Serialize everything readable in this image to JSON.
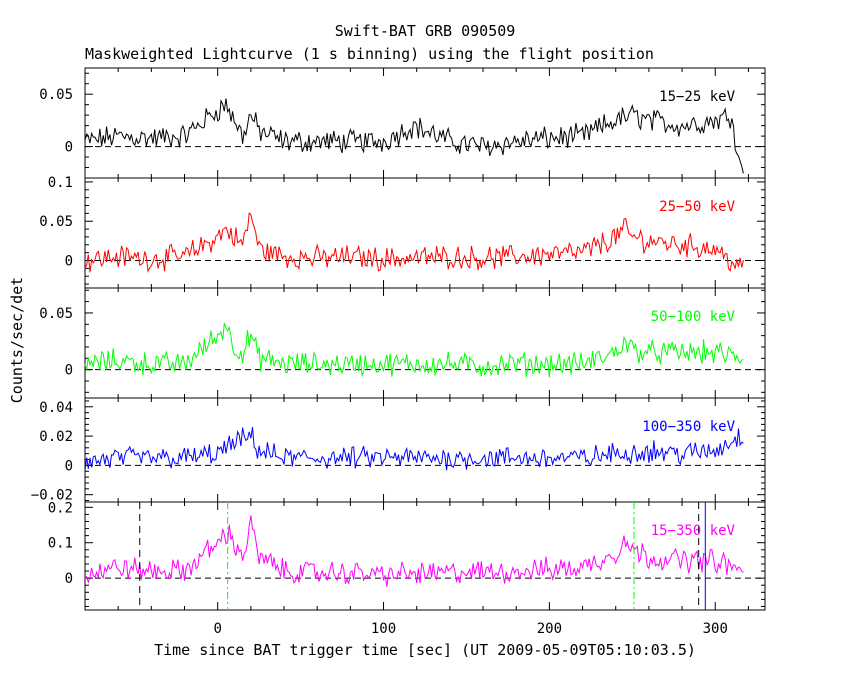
{
  "chart_data": {
    "type": "line",
    "title": "Swift-BAT GRB 090509",
    "subtitle": "Maskweighted Lightcurve (1 s binning) using the flight position",
    "xlabel": "Time since BAT trigger time [sec] (UT 2009-05-09T05:10:03.5)",
    "ylabel": "Counts/sec/det",
    "xlim": [
      -80,
      330
    ],
    "xticks": [
      0,
      100,
      200,
      300
    ],
    "xtick_labels": [
      "0",
      "100",
      "200",
      "300"
    ],
    "panels": [
      {
        "name": "15-25 keV",
        "label": "15−25 keV",
        "color": "#000000",
        "ylim": [
          -0.03,
          0.075
        ],
        "yticks": [
          0,
          0.05
        ],
        "ytick_labels": [
          "0",
          "0.05"
        ],
        "zero_line": true,
        "x": [
          -80,
          -60,
          -40,
          -20,
          0,
          5,
          10,
          15,
          20,
          25,
          40,
          60,
          80,
          100,
          118,
          140,
          160,
          180,
          200,
          220,
          240,
          250,
          260,
          280,
          300,
          310,
          315
        ],
        "y": [
          0.005,
          0.01,
          0.008,
          0.01,
          0.035,
          0.04,
          0.025,
          0.01,
          0.03,
          0.015,
          0.005,
          0.005,
          0.005,
          0.005,
          0.02,
          0.005,
          0.0,
          0.005,
          0.008,
          0.01,
          0.025,
          0.03,
          0.025,
          0.02,
          0.025,
          0.03,
          -0.02
        ]
      },
      {
        "name": "25-50 keV",
        "label": "25−50 keV",
        "color": "#ff0000",
        "ylim": [
          -0.035,
          0.105
        ],
        "yticks": [
          0,
          0.05,
          0.1
        ],
        "ytick_labels": [
          "0",
          "0.05",
          "0.1"
        ],
        "zero_line": true,
        "x": [
          -80,
          -60,
          -40,
          -20,
          0,
          5,
          10,
          15,
          20,
          25,
          40,
          60,
          80,
          100,
          140,
          160,
          180,
          200,
          220,
          240,
          245,
          250,
          260,
          280,
          300,
          315
        ],
        "y": [
          0.0,
          0.005,
          0.002,
          0.005,
          0.03,
          0.04,
          0.03,
          0.02,
          0.06,
          0.015,
          0.005,
          0.003,
          0.005,
          0.002,
          0.005,
          0.003,
          0.005,
          0.008,
          0.01,
          0.03,
          0.04,
          0.03,
          0.025,
          0.02,
          0.015,
          -0.01
        ]
      },
      {
        "name": "50-100 keV",
        "label": "50−100 keV",
        "color": "#00ff00",
        "ylim": [
          -0.025,
          0.072
        ],
        "yticks": [
          0,
          0.05
        ],
        "ytick_labels": [
          "0",
          "0.05"
        ],
        "zero_line": true,
        "x": [
          -80,
          -60,
          -40,
          -20,
          0,
          5,
          10,
          15,
          20,
          25,
          40,
          60,
          80,
          100,
          140,
          160,
          180,
          200,
          220,
          240,
          245,
          250,
          260,
          280,
          300,
          315
        ],
        "y": [
          0.005,
          0.008,
          0.005,
          0.005,
          0.03,
          0.04,
          0.02,
          0.015,
          0.03,
          0.01,
          0.005,
          0.005,
          0.005,
          0.005,
          0.005,
          0.003,
          0.005,
          0.005,
          0.005,
          0.015,
          0.025,
          0.018,
          0.015,
          0.015,
          0.015,
          0.01
        ]
      },
      {
        "name": "100-350 keV",
        "label": "100−350 keV",
        "color": "#0000ff",
        "ylim": [
          -0.025,
          0.046
        ],
        "yticks": [
          -0.02,
          0,
          0.02,
          0.04
        ],
        "ytick_labels": [
          "−0.02",
          "0",
          "0.02",
          "0.04"
        ],
        "zero_line": true,
        "x": [
          -80,
          -60,
          -40,
          -20,
          0,
          10,
          20,
          25,
          40,
          60,
          80,
          100,
          140,
          180,
          220,
          240,
          260,
          280,
          300,
          315
        ],
        "y": [
          0.002,
          0.005,
          0.005,
          0.005,
          0.008,
          0.015,
          0.02,
          0.01,
          0.005,
          0.005,
          0.005,
          0.005,
          0.005,
          0.005,
          0.005,
          0.008,
          0.01,
          0.008,
          0.01,
          0.02
        ]
      },
      {
        "name": "15-350 keV",
        "label": "15−350 keV",
        "color": "#ff00ff",
        "ylim": [
          -0.09,
          0.215
        ],
        "yticks": [
          0,
          0.1,
          0.2
        ],
        "ytick_labels": [
          "0",
          "0.1",
          "0.2"
        ],
        "zero_line": true,
        "x": [
          -80,
          -60,
          -40,
          -20,
          0,
          5,
          10,
          15,
          20,
          25,
          40,
          60,
          80,
          100,
          140,
          180,
          200,
          220,
          240,
          245,
          250,
          260,
          280,
          300,
          315
        ],
        "y": [
          0.01,
          0.03,
          0.02,
          0.02,
          0.1,
          0.13,
          0.1,
          0.06,
          0.15,
          0.06,
          0.02,
          0.015,
          0.015,
          0.01,
          0.015,
          0.02,
          0.025,
          0.03,
          0.07,
          0.11,
          0.08,
          0.06,
          0.05,
          0.05,
          0.02
        ],
        "vlines": [
          {
            "x": -47,
            "color": "#000000",
            "style": "dashed"
          },
          {
            "x": 6,
            "color": "#00ff00",
            "style": "dashdot"
          },
          {
            "x": 251,
            "color": "#00ff00",
            "style": "dashdot"
          },
          {
            "x": 290,
            "color": "#000000",
            "style": "dashed"
          },
          {
            "x": 294,
            "color": "#0000ff",
            "style": "solid"
          }
        ]
      }
    ]
  }
}
